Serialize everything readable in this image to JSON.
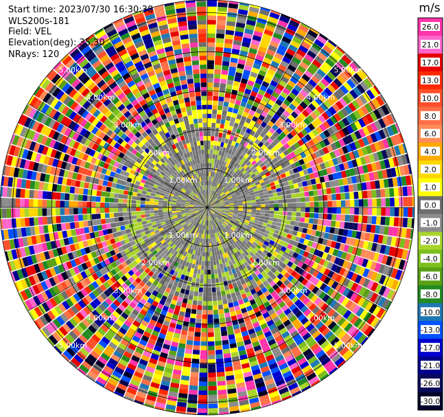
{
  "header": {
    "start_time": "Start time: 2023/07/30 16:30:38",
    "instrument": "WLS200s-181",
    "field": "Field: VEL",
    "elevation": "Elevation(deg): 35.30",
    "nrays": "NRays: 120"
  },
  "colorbar": {
    "unit": "m/s",
    "ticks": [
      "26.0",
      "21.0",
      "17.0",
      "13.0",
      "10.0",
      "8.0",
      "6.0",
      "4.0",
      "2.0",
      "1.0",
      "0.0",
      "-1.0",
      "-2.0",
      "-4.0",
      "-6.0",
      "-8.0",
      "-10.0",
      "-13.0",
      "-17.0",
      "-21.0",
      "-26.0",
      "-30.0"
    ],
    "colors": [
      "#ff33aa",
      "#ff66cc",
      "#e60000",
      "#ff2a00",
      "#ff4f2a",
      "#ff6f47",
      "#ff8c5a",
      "#ffaa00",
      "#ffd700",
      "#ffff00",
      "#6e6e6e",
      "#8c8c8c",
      "#aad42c",
      "#7dbe1e",
      "#5aa014",
      "#228b22",
      "#1e78b4",
      "#0050ff",
      "#0000cd",
      "#00008b",
      "#0a0a5a",
      "#000028"
    ]
  },
  "chart_data": {
    "type": "heatmap",
    "plot_kind": "PPI radial velocity scan",
    "field": "VEL",
    "n_rays": 120,
    "elevation_deg": 35.3,
    "range_rings_km": [
      1.0,
      2.0,
      3.0,
      4.0,
      5.0
    ],
    "ring_labels": [
      {
        "text": "1.00km",
        "angles": [
          135,
          45,
          225,
          315
        ]
      },
      {
        "text": "2.00km",
        "angles": [
          135,
          45,
          225,
          315
        ]
      },
      {
        "text": "3.00km",
        "angles": [
          135,
          45,
          225,
          315
        ]
      },
      {
        "text": "4.00km",
        "angles": [
          135,
          45,
          225,
          315
        ]
      },
      {
        "text": "5.00km",
        "angles": [
          135,
          45,
          225,
          315
        ]
      }
    ],
    "range_structure": [
      {
        "range_km": [
          0.0,
          1.6
        ],
        "description": "near-zero velocity, mostly gray with light green patches"
      },
      {
        "range_km": [
          1.6,
          2.6
        ],
        "description": "gray with yellow (+2 to +4 m/s) gates at north and green (-2 m/s) at south"
      },
      {
        "range_km": [
          2.6,
          5.6
        ],
        "description": "noisy, all velocity colors mixed"
      }
    ],
    "colorbar_range": [
      -30.0,
      26.0
    ],
    "unit": "m/s"
  }
}
